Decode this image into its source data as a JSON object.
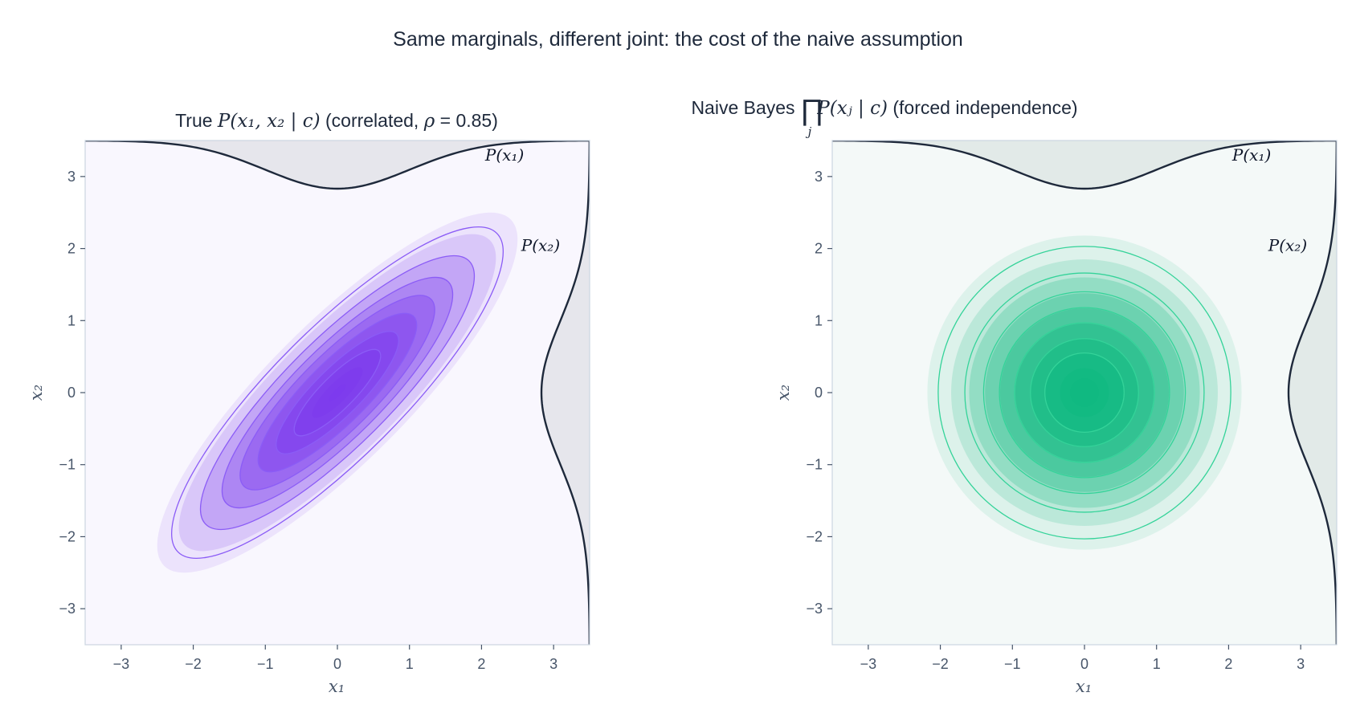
{
  "figure": {
    "suptitle": "Same marginals, different joint: the cost of the naive assumption"
  },
  "chart_data": [
    {
      "type": "contour",
      "title": "True P(x₁, x₂ | c)  (correlated, ρ = 0.85)",
      "title_parts": {
        "lead": "True ",
        "math": "P(x₁, x₂ | c)",
        "paren_open": "  (correlated, ",
        "rho": "ρ",
        "rho_value": " = 0.85",
        "paren_close": ")"
      },
      "xlabel": "x₁",
      "ylabel": "x₂",
      "xlim": [
        -3.5,
        3.5
      ],
      "ylim": [
        -3.5,
        3.5
      ],
      "xticks": [
        -3,
        -2,
        -1,
        0,
        1,
        2,
        3
      ],
      "yticks": [
        -3,
        -2,
        -1,
        0,
        1,
        2,
        3
      ],
      "tick_labels": [
        "−3",
        "−2",
        "−1",
        "0",
        "1",
        "2",
        "3"
      ],
      "distribution": {
        "mean": [
          0,
          0
        ],
        "std": [
          1,
          1
        ],
        "rho": 0.85
      },
      "contour_levels_mahalanobis": [
        2.5,
        2.2,
        1.9,
        1.6,
        1.35,
        1.1,
        0.85,
        0.6,
        0.35
      ],
      "line_levels_mahalanobis": [
        2.3,
        1.9,
        1.6,
        1.35,
        1.1,
        0.85,
        0.6
      ],
      "marginal_x_label": "P(x₁)",
      "marginal_y_label": "P(x₂)",
      "colors": {
        "background": "#f9f7fe",
        "fill": "#7c3aed",
        "line": "#8b5cf6",
        "marginal_fill": "#e6e6ec",
        "marginal_line": "#1e293b"
      }
    },
    {
      "type": "contour",
      "title": "Naive Bayes ∏j P(xj | c)  (forced independence)",
      "title_parts": {
        "lead": "Naive Bayes ",
        "prod": "∏",
        "sub_j": "j",
        "math": "P(xⱼ | c)",
        "rest": "  (forced independence)"
      },
      "xlabel": "x₁",
      "ylabel": "x₂",
      "xlim": [
        -3.5,
        3.5
      ],
      "ylim": [
        -3.5,
        3.5
      ],
      "xticks": [
        -3,
        -2,
        -1,
        0,
        1,
        2,
        3
      ],
      "yticks": [
        -3,
        -2,
        -1,
        0,
        1,
        2,
        3
      ],
      "tick_labels": [
        "−3",
        "−2",
        "−1",
        "0",
        "1",
        "2",
        "3"
      ],
      "distribution": {
        "mean": [
          0,
          0
        ],
        "std": [
          1,
          1
        ],
        "rho": 0
      },
      "contour_levels_mahalanobis": [
        2.18,
        1.85,
        1.6,
        1.38,
        1.17,
        0.96,
        0.75,
        0.55,
        0.34
      ],
      "line_levels_mahalanobis": [
        2.03,
        1.66,
        1.4,
        1.18,
        0.97,
        0.75,
        0.55
      ],
      "marginal_x_label": "P(x₁)",
      "marginal_y_label": "P(x₂)",
      "colors": {
        "background": "#f4f9f8",
        "fill": "#10b981",
        "line": "#34d399",
        "marginal_fill": "#e2eae8",
        "marginal_line": "#1e293b"
      }
    }
  ]
}
